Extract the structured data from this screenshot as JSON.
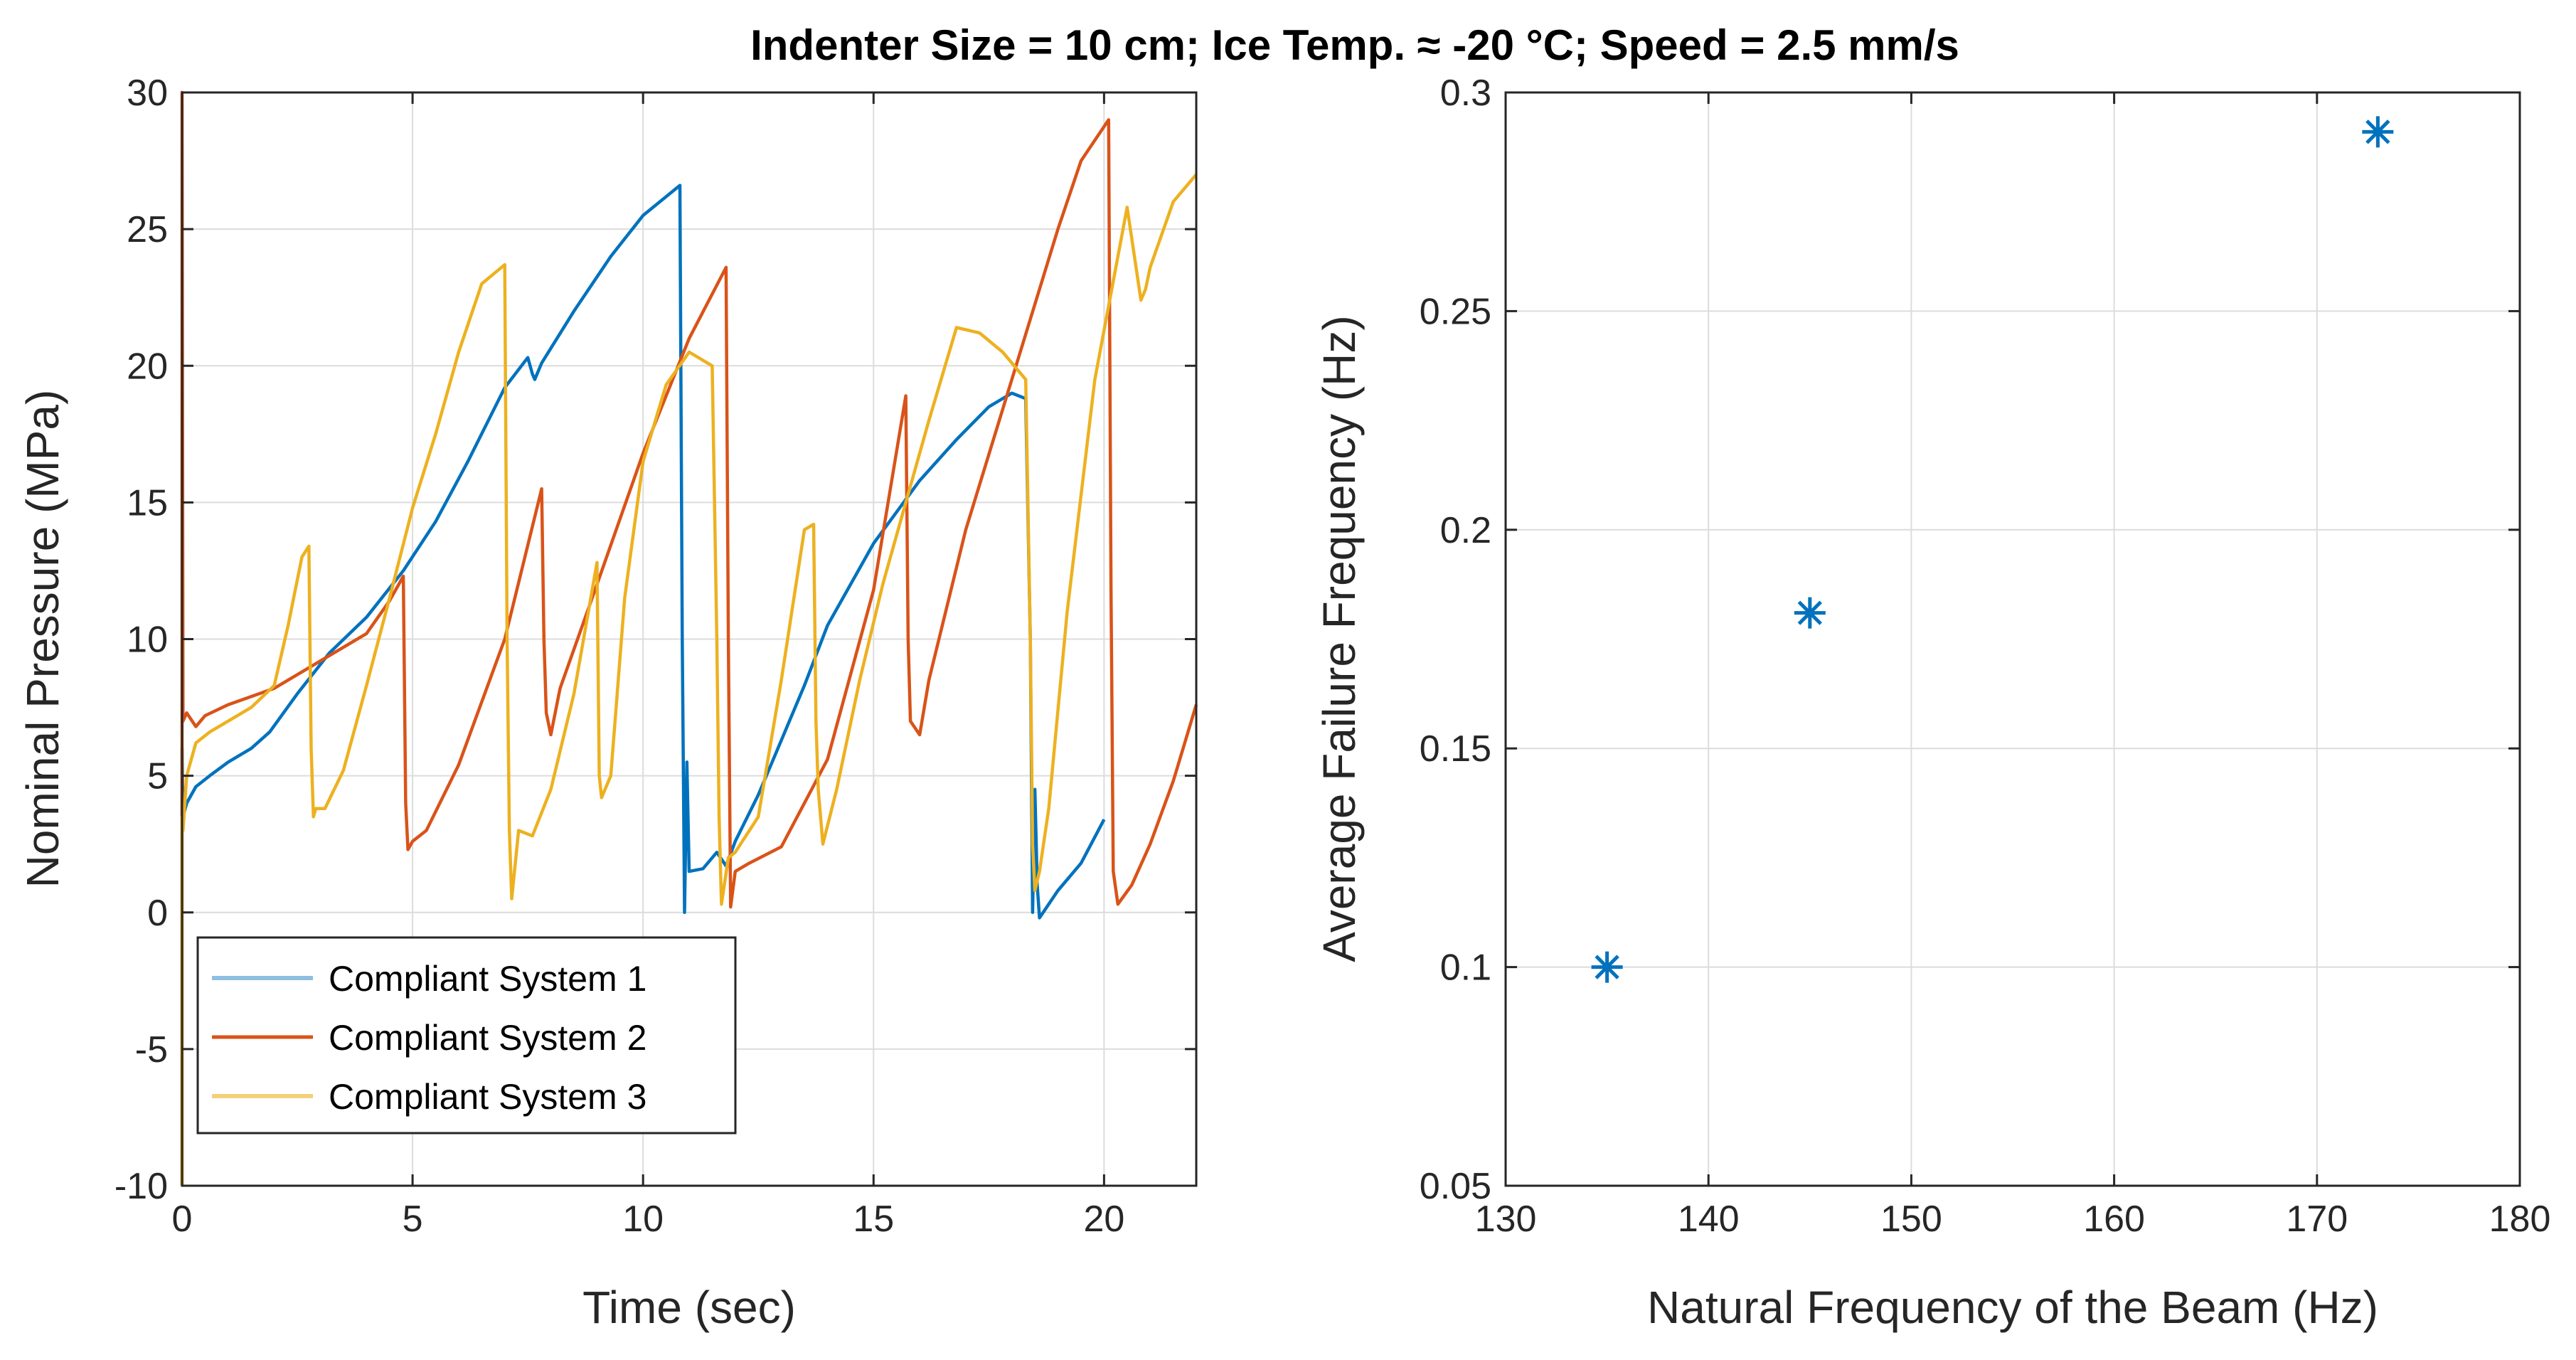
{
  "figure_title": "Indenter Size = 10 cm; Ice Temp. ≈ -20 °C; Speed = 2.5 mm/s",
  "chart_data": [
    {
      "type": "line",
      "xlabel": "Time (sec)",
      "ylabel": "Nominal Pressure (MPa)",
      "xlim": [
        0,
        22
      ],
      "ylim": [
        -10,
        30
      ],
      "xticks": [
        0,
        5,
        10,
        15,
        20
      ],
      "xtick_labels": [
        "0",
        "5",
        "10",
        "15",
        "20"
      ],
      "yticks": [
        -10,
        -5,
        0,
        5,
        10,
        15,
        20,
        25,
        30
      ],
      "ytick_labels": [
        "-10",
        "-5",
        "0",
        "5",
        "10",
        "15",
        "20",
        "25",
        "30"
      ],
      "grid": true,
      "legend_position": "bottom-left",
      "series": [
        {
          "name": "Compliant System 1",
          "color": "#0072BD",
          "x": [
            0,
            0,
            0.02,
            0.1,
            0.3,
            0.6,
            1.0,
            1.5,
            1.9,
            2.5,
            3.2,
            4.0,
            4.8,
            5.5,
            6.2,
            7.0,
            7.5,
            7.6,
            7.65,
            7.8,
            8.5,
            9.3,
            10.0,
            10.8,
            10.85,
            10.9,
            10.95,
            11.0,
            11.3,
            11.6,
            11.8,
            12.0,
            12.5,
            13.0,
            13.5,
            14.0,
            15.0,
            16.0,
            16.8,
            17.5,
            18.0,
            18.3,
            18.4,
            18.45,
            18.5,
            18.55,
            18.6,
            19.0,
            19.5,
            20.0
          ],
          "y": [
            -10,
            6,
            3.5,
            4.0,
            4.6,
            5.0,
            5.5,
            6.0,
            6.6,
            8.0,
            9.5,
            10.8,
            12.5,
            14.3,
            16.5,
            19.2,
            20.3,
            19.7,
            19.5,
            20.1,
            22.0,
            24.0,
            25.5,
            26.6,
            10.0,
            0.0,
            5.5,
            1.5,
            1.6,
            2.2,
            1.7,
            2.6,
            4.3,
            6.3,
            8.3,
            10.5,
            13.5,
            15.8,
            17.3,
            18.5,
            19.0,
            18.8,
            10.0,
            0.0,
            4.5,
            1.0,
            -0.2,
            0.8,
            1.8,
            3.4
          ]
        },
        {
          "name": "Compliant System 2",
          "color": "#D95319",
          "x": [
            0,
            0,
            0.02,
            0.1,
            0.3,
            0.5,
            1.0,
            1.5,
            2.0,
            3.0,
            4.0,
            4.5,
            4.8,
            4.85,
            4.9,
            5.0,
            5.3,
            6.0,
            7.0,
            7.8,
            7.85,
            7.9,
            8.0,
            8.2,
            9.0,
            10.0,
            11.0,
            11.8,
            11.85,
            11.9,
            12.0,
            12.3,
            13.0,
            14.0,
            15.0,
            15.7,
            15.75,
            15.8,
            16.0,
            16.2,
            17.0,
            18.0,
            19.0,
            19.5,
            20.1,
            20.15,
            20.2,
            20.3,
            20.6,
            21.0,
            21.5,
            22.0
          ],
          "y": [
            -10,
            30,
            7.0,
            7.3,
            6.8,
            7.2,
            7.6,
            7.9,
            8.2,
            9.2,
            10.2,
            11.4,
            12.3,
            4.0,
            2.3,
            2.6,
            3.0,
            5.4,
            10.0,
            15.5,
            10.0,
            7.3,
            6.5,
            8.2,
            12.0,
            16.8,
            21.0,
            23.6,
            10.0,
            0.2,
            1.5,
            1.8,
            2.4,
            5.6,
            11.8,
            18.9,
            10.0,
            7.0,
            6.5,
            8.5,
            14.0,
            19.5,
            25.0,
            27.5,
            29.0,
            12.0,
            1.5,
            0.3,
            1.0,
            2.5,
            4.8,
            7.6
          ]
        },
        {
          "name": "Compliant System 3",
          "color": "#EDB120",
          "x": [
            0,
            0,
            0.02,
            0.1,
            0.3,
            0.6,
            1.0,
            1.5,
            2.0,
            2.3,
            2.6,
            2.75,
            2.8,
            2.85,
            2.9,
            3.1,
            3.5,
            4.0,
            4.5,
            5.0,
            5.5,
            6.0,
            6.5,
            7.0,
            7.05,
            7.1,
            7.15,
            7.3,
            7.6,
            8.0,
            8.5,
            9.0,
            9.05,
            9.1,
            9.3,
            9.6,
            10.0,
            10.5,
            11.0,
            11.5,
            11.6,
            11.65,
            11.7,
            11.85,
            12.0,
            12.5,
            13.0,
            13.5,
            13.7,
            13.75,
            13.8,
            13.9,
            14.2,
            14.7,
            15.2,
            15.7,
            16.2,
            16.8,
            17.3,
            17.8,
            18.3,
            18.4,
            18.45,
            18.5,
            18.6,
            18.8,
            19.2,
            19.8,
            20.5,
            20.8,
            20.85,
            20.9,
            21.0,
            21.5,
            22.0
          ],
          "y": [
            -10,
            3.5,
            3.0,
            5.0,
            6.2,
            6.6,
            7.0,
            7.5,
            8.3,
            10.5,
            13.0,
            13.4,
            6.0,
            3.5,
            3.8,
            3.8,
            5.2,
            8.3,
            11.5,
            14.8,
            17.5,
            20.5,
            23.0,
            23.7,
            10.0,
            3.0,
            0.5,
            3.0,
            2.8,
            4.5,
            8.0,
            12.8,
            5.0,
            4.2,
            5.0,
            11.5,
            16.5,
            19.3,
            20.5,
            20.0,
            10.0,
            3.5,
            0.3,
            2.0,
            2.2,
            3.5,
            8.5,
            14.0,
            14.2,
            7.0,
            4.5,
            2.5,
            4.5,
            8.5,
            12.0,
            15.0,
            18.0,
            21.4,
            21.2,
            20.5,
            19.5,
            10.0,
            2.5,
            0.8,
            1.5,
            3.8,
            11.0,
            19.5,
            25.8,
            22.4,
            22.6,
            22.8,
            23.6,
            26.0,
            27.0
          ]
        }
      ]
    },
    {
      "type": "scatter",
      "xlabel": "Natural Frequency of the Beam (Hz)",
      "ylabel": "Average Failure Frequency (Hz)",
      "xlim": [
        130,
        180
      ],
      "ylim": [
        0.05,
        0.3
      ],
      "xticks": [
        130,
        140,
        150,
        160,
        170,
        180
      ],
      "xtick_labels": [
        "130",
        "140",
        "150",
        "160",
        "170",
        "180"
      ],
      "yticks": [
        0.05,
        0.1,
        0.15,
        0.2,
        0.25,
        0.3
      ],
      "ytick_labels": [
        "0.05",
        "0.1",
        "0.15",
        "0.2",
        "0.25",
        "0.3"
      ],
      "grid": true,
      "marker": "*",
      "color": "#0072BD",
      "x": [
        135,
        145,
        173
      ],
      "y": [
        0.1,
        0.181,
        0.291
      ]
    }
  ]
}
